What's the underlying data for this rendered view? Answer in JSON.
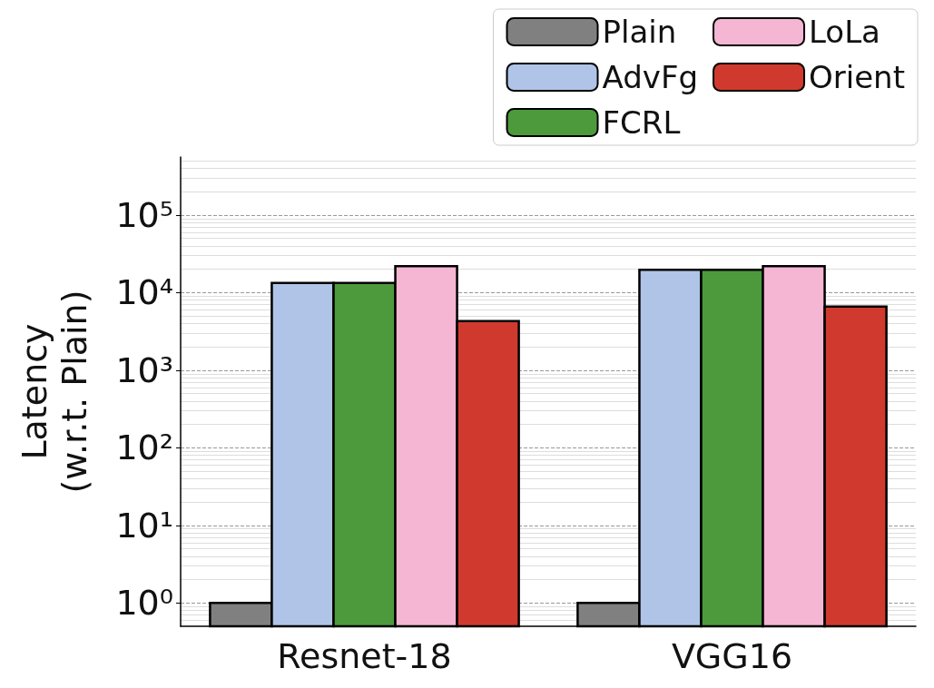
{
  "chart_data": {
    "type": "bar",
    "ylabel": "Latency\n(w.r.t. Plain)",
    "categories": [
      "Resnet-18",
      "VGG16"
    ],
    "series": [
      {
        "name": "Plain",
        "color": "#808080",
        "values": [
          1,
          1
        ]
      },
      {
        "name": "AdvFg",
        "color": "#b0c4e8",
        "values": [
          13300,
          19700
        ]
      },
      {
        "name": "FCRL",
        "color": "#4c9a3c",
        "values": [
          13300,
          19700
        ]
      },
      {
        "name": "LoLa",
        "color": "#f4b6d2",
        "values": [
          22000,
          22000
        ]
      },
      {
        "name": "Orient",
        "color": "#d03a2e",
        "values": [
          4300,
          6600
        ]
      }
    ],
    "log": "y",
    "ylim": [
      0.5,
      560000
    ],
    "yticks": [
      {
        "value": 1,
        "label": "10⁰"
      },
      {
        "value": 10,
        "label": "10¹"
      },
      {
        "value": 100,
        "label": "10²"
      },
      {
        "value": 1000,
        "label": "10³"
      },
      {
        "value": 10000,
        "label": "10⁴"
      },
      {
        "value": 100000,
        "label": "10⁵"
      }
    ],
    "grid": "y",
    "legend": "top right"
  }
}
